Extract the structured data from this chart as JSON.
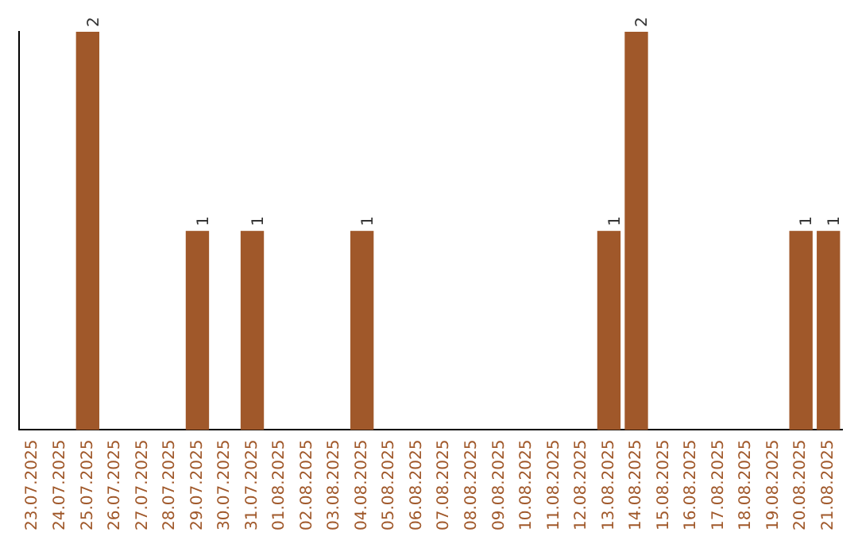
{
  "chart_data": {
    "type": "bar",
    "categories": [
      "23.07.2025",
      "24.07.2025",
      "25.07.2025",
      "26.07.2025",
      "27.07.2025",
      "28.07.2025",
      "29.07.2025",
      "30.07.2025",
      "31.07.2025",
      "01.08.2025",
      "02.08.2025",
      "03.08.2025",
      "04.08.2025",
      "05.08.2025",
      "06.08.2025",
      "07.08.2025",
      "08.08.2025",
      "09.08.2025",
      "10.08.2025",
      "11.08.2025",
      "12.08.2025",
      "13.08.2025",
      "14.08.2025",
      "15.08.2025",
      "16.08.2025",
      "17.08.2025",
      "18.08.2025",
      "19.08.2025",
      "20.08.2025",
      "21.08.2025"
    ],
    "values": [
      0,
      0,
      2,
      0,
      0,
      0,
      1,
      0,
      1,
      0,
      0,
      0,
      1,
      0,
      0,
      0,
      0,
      0,
      0,
      0,
      0,
      1,
      2,
      0,
      0,
      0,
      0,
      0,
      1,
      1
    ],
    "value_labels": [
      null,
      null,
      "2",
      null,
      null,
      null,
      "1",
      null,
      "1",
      null,
      null,
      null,
      "1",
      null,
      null,
      null,
      null,
      null,
      null,
      null,
      null,
      "1",
      "2",
      null,
      null,
      null,
      null,
      null,
      "1",
      "1"
    ],
    "color": "#a0582a",
    "ylim": [
      0,
      2
    ],
    "tick_labels": "x",
    "grid": false,
    "legend": false
  }
}
